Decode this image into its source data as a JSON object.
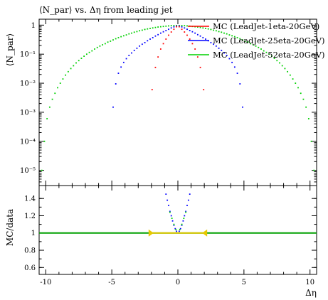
{
  "chart_data": [
    {
      "panel": "main",
      "type": "scatter",
      "title": "⟨N_par⟩ vs. Δη from leading jet",
      "ylabel": "⟨N_par⟩",
      "xlim": [
        -10.5,
        10.5
      ],
      "ylim": [
        3e-06,
        1.6
      ],
      "yscale": "log",
      "legend": "top-right",
      "yticks": [
        {
          "v": 1,
          "label": "1"
        },
        {
          "v": 0.1,
          "label": "10⁻¹"
        },
        {
          "v": 0.01,
          "label": "10⁻²"
        },
        {
          "v": 0.001,
          "label": "10⁻³"
        },
        {
          "v": 0.0001,
          "label": "10⁻⁴"
        },
        {
          "v": 1e-05,
          "label": "10⁻⁵"
        }
      ],
      "series": [
        {
          "name": "MC (LeadJet-1eta-20GeV)",
          "color": "#ff0000",
          "x": [
            -1.95,
            -1.7,
            -1.5,
            -1.3,
            -1.1,
            -0.9,
            -0.7,
            -0.5,
            -0.3,
            -0.1,
            0.1,
            0.3,
            0.5,
            0.7,
            0.9,
            1.1,
            1.3,
            1.5,
            1.7,
            1.95
          ],
          "y": [
            0.006,
            0.035,
            0.08,
            0.15,
            0.23,
            0.33,
            0.45,
            0.58,
            0.72,
            0.88,
            0.88,
            0.72,
            0.58,
            0.45,
            0.33,
            0.23,
            0.15,
            0.08,
            0.035,
            0.006
          ]
        },
        {
          "name": "MC (LeadJet-25eta-20GeV)",
          "color": "#0000ff",
          "x": [
            -4.9,
            -4.7,
            -4.5,
            -4.3,
            -4.1,
            -3.9,
            -3.7,
            -3.5,
            -3.3,
            -3.1,
            -2.9,
            -2.7,
            -2.5,
            -2.3,
            -2.1,
            -1.9,
            -1.7,
            -1.5,
            -1.3,
            -1.1,
            -0.9,
            -0.7,
            -0.5,
            -0.3,
            -0.1,
            0.1,
            0.3,
            0.5,
            0.7,
            0.9,
            1.1,
            1.3,
            1.5,
            1.7,
            1.9,
            2.1,
            2.3,
            2.5,
            2.7,
            2.9,
            3.1,
            3.3,
            3.5,
            3.7,
            3.9,
            4.1,
            4.3,
            4.5,
            4.7,
            4.9
          ],
          "y": [
            0.0015,
            0.0095,
            0.022,
            0.036,
            0.052,
            0.07,
            0.09,
            0.11,
            0.135,
            0.16,
            0.19,
            0.22,
            0.25,
            0.29,
            0.33,
            0.37,
            0.42,
            0.47,
            0.53,
            0.59,
            0.65,
            0.72,
            0.8,
            0.87,
            0.93,
            0.93,
            0.87,
            0.8,
            0.72,
            0.65,
            0.59,
            0.53,
            0.47,
            0.42,
            0.37,
            0.33,
            0.29,
            0.25,
            0.22,
            0.19,
            0.16,
            0.135,
            0.11,
            0.09,
            0.07,
            0.052,
            0.036,
            0.022,
            0.0095,
            0.0015
          ]
        },
        {
          "name": "MC (LeadJet-52eta-20GeV)",
          "color": "#00d000",
          "x": [
            -10.3,
            -10.1,
            -9.9,
            -9.7,
            -9.5,
            -9.3,
            -9.1,
            -8.9,
            -8.7,
            -8.5,
            -8.3,
            -8.1,
            -7.9,
            -7.7,
            -7.5,
            -7.3,
            -7.1,
            -6.9,
            -6.7,
            -6.5,
            -6.3,
            -6.1,
            -5.9,
            -5.7,
            -5.5,
            -5.3,
            -5.1,
            -4.9,
            -4.7,
            -4.5,
            -4.3,
            -4.1,
            -3.9,
            -3.7,
            -3.5,
            -3.3,
            -3.1,
            -2.9,
            -2.7,
            -2.5,
            -2.3,
            -2.1,
            -1.9,
            -1.7,
            -1.5,
            -1.3,
            -1.1,
            -0.9,
            -0.7,
            -0.5,
            -0.3,
            -0.1,
            0.1,
            0.3,
            0.5,
            0.7,
            0.9,
            1.1,
            1.3,
            1.5,
            1.7,
            1.9,
            2.1,
            2.3,
            2.5,
            2.7,
            2.9,
            3.1,
            3.3,
            3.5,
            3.7,
            3.9,
            4.1,
            4.3,
            4.5,
            4.7,
            4.9,
            5.1,
            5.3,
            5.5,
            5.7,
            5.9,
            6.1,
            6.3,
            6.5,
            6.7,
            6.9,
            7.1,
            7.3,
            7.5,
            7.7,
            7.9,
            8.1,
            8.3,
            8.5,
            8.7,
            8.9,
            9.1,
            9.3,
            9.5,
            9.7,
            9.9,
            10.1,
            10.3
          ],
          "y": [
            1e-05,
            0.0001,
            0.0006,
            0.0015,
            0.0028,
            0.0045,
            0.007,
            0.01,
            0.014,
            0.019,
            0.025,
            0.032,
            0.04,
            0.05,
            0.06,
            0.072,
            0.085,
            0.1,
            0.115,
            0.13,
            0.15,
            0.17,
            0.19,
            0.21,
            0.23,
            0.26,
            0.28,
            0.31,
            0.34,
            0.37,
            0.4,
            0.43,
            0.46,
            0.5,
            0.53,
            0.57,
            0.6,
            0.64,
            0.67,
            0.71,
            0.74,
            0.77,
            0.8,
            0.83,
            0.86,
            0.88,
            0.9,
            0.92,
            0.94,
            0.955,
            0.965,
            0.97,
            0.97,
            0.965,
            0.955,
            0.94,
            0.92,
            0.9,
            0.88,
            0.86,
            0.83,
            0.8,
            0.77,
            0.74,
            0.71,
            0.67,
            0.64,
            0.6,
            0.57,
            0.53,
            0.5,
            0.46,
            0.43,
            0.4,
            0.37,
            0.34,
            0.31,
            0.28,
            0.26,
            0.23,
            0.21,
            0.19,
            0.17,
            0.15,
            0.13,
            0.115,
            0.1,
            0.085,
            0.072,
            0.06,
            0.05,
            0.04,
            0.032,
            0.025,
            0.019,
            0.014,
            0.01,
            0.007,
            0.0045,
            0.0028,
            0.0015,
            0.0006,
            0.0001,
            1e-05
          ]
        }
      ]
    },
    {
      "panel": "ratio",
      "type": "line",
      "ylabel": "MC/data",
      "xlabel": "Δη",
      "xlim": [
        -10.5,
        10.5
      ],
      "ylim": [
        0.52,
        1.55
      ],
      "yticks": [
        {
          "v": 0.6,
          "label": "0.6"
        },
        {
          "v": 0.8,
          "label": "0.8"
        },
        {
          "v": 1.0,
          "label": "1"
        },
        {
          "v": 1.2,
          "label": "1.2"
        },
        {
          "v": 1.4,
          "label": "1.4"
        }
      ],
      "xticks": [
        {
          "v": -10,
          "label": "-10"
        },
        {
          "v": -5,
          "label": "-5"
        },
        {
          "v": 0,
          "label": "0"
        },
        {
          "v": 5,
          "label": "5"
        },
        {
          "v": 10,
          "label": "10"
        }
      ],
      "reference": {
        "y": 1.0,
        "color": "#00a000"
      },
      "band": {
        "x": [
          -2.0,
          2.0
        ],
        "y": 1.0,
        "color": "#e8c800"
      },
      "ratio_points": {
        "color": "#0000ff",
        "x": [
          -0.9,
          -0.8,
          -0.7,
          -0.6,
          -0.5,
          -0.4,
          -0.3,
          -0.2,
          -0.1,
          0.1,
          0.2,
          0.3,
          0.4,
          0.5,
          0.6,
          0.7,
          0.8,
          0.9
        ],
        "y": [
          1.45,
          1.38,
          1.32,
          1.25,
          1.2,
          1.14,
          1.09,
          1.05,
          1.02,
          1.02,
          1.05,
          1.09,
          1.14,
          1.2,
          1.25,
          1.32,
          1.38,
          1.45
        ]
      },
      "ratio_points_green": {
        "color": "#00d000",
        "x": [
          -0.6,
          -0.45,
          -0.3,
          -0.15,
          0.15,
          0.3,
          0.45,
          0.6
        ],
        "y": [
          1.24,
          1.17,
          1.1,
          1.04,
          1.04,
          1.1,
          1.17,
          1.24
        ]
      }
    }
  ]
}
